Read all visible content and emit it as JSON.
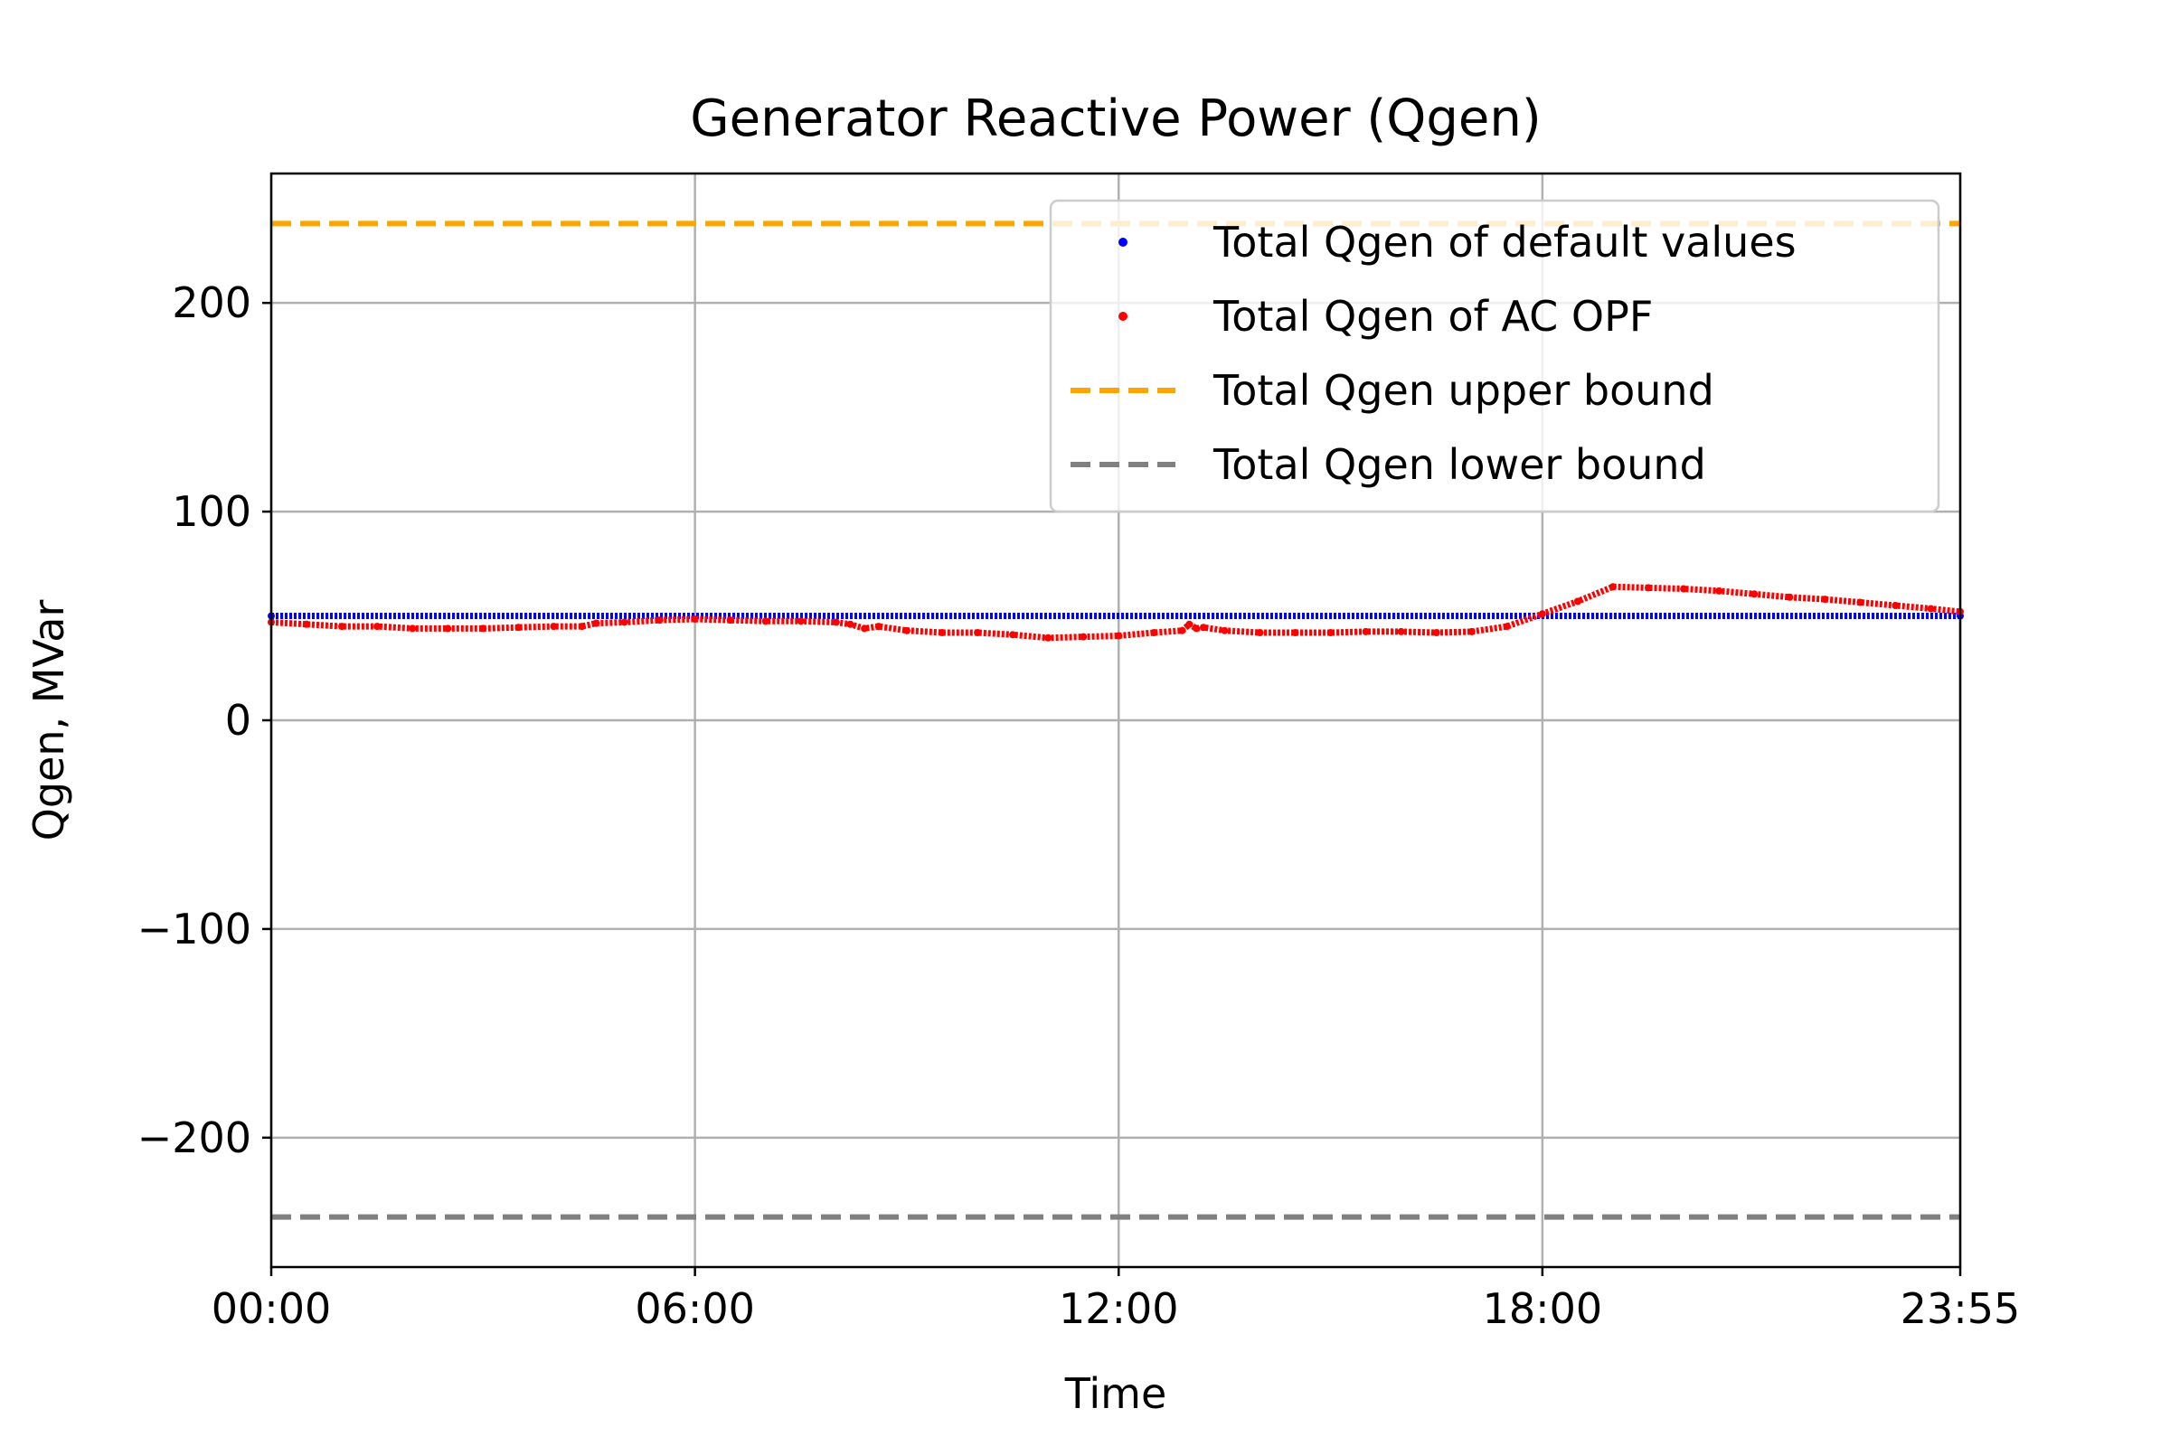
{
  "chart_data": {
    "type": "line",
    "title": "Generator Reactive Power (Qgen)",
    "xlabel": "Time",
    "ylabel": "Qgen, MVar",
    "x_unit": "hours",
    "xlim": [
      0,
      23.9167
    ],
    "ylim": [
      -262,
      262
    ],
    "x_ticks": [
      {
        "value": 0,
        "label": "00:00"
      },
      {
        "value": 6,
        "label": "06:00"
      },
      {
        "value": 12,
        "label": "12:00"
      },
      {
        "value": 18,
        "label": "18:00"
      },
      {
        "value": 23.9167,
        "label": "23:55"
      }
    ],
    "y_ticks": [
      {
        "value": 200,
        "label": "200"
      },
      {
        "value": 100,
        "label": "100"
      },
      {
        "value": 0,
        "label": "0"
      },
      {
        "value": -100,
        "label": "−100"
      },
      {
        "value": -200,
        "label": "−200"
      }
    ],
    "grid": true,
    "legend_position": "top-right",
    "series": [
      {
        "name": "Total Qgen of default values",
        "color": "#0000ff",
        "style": "dots",
        "x": [
          0,
          23.9167
        ],
        "y": [
          50,
          50
        ]
      },
      {
        "name": "Total Qgen of AC OPF",
        "color": "#ff0000",
        "style": "dots",
        "x": [
          0,
          0.5,
          1,
          1.5,
          2,
          2.5,
          3,
          3.5,
          4,
          4.4,
          4.6,
          5,
          5.5,
          6,
          6.5,
          7,
          7.5,
          8,
          8.2,
          8.4,
          8.6,
          9,
          9.5,
          10,
          10.5,
          11,
          11.5,
          12,
          12.5,
          12.9,
          13.0,
          13.1,
          13.2,
          13.5,
          14,
          14.5,
          15,
          15.5,
          16,
          16.5,
          17,
          17.5,
          18,
          18.5,
          19,
          19.5,
          20,
          20.5,
          21,
          21.5,
          22,
          22.5,
          23,
          23.5,
          23.9167
        ],
        "y": [
          47,
          46,
          45,
          45,
          44,
          44,
          44,
          44.5,
          45,
          45,
          46.5,
          47,
          48,
          48.5,
          48,
          47.5,
          47.5,
          47,
          46,
          44,
          45,
          43,
          42,
          42,
          41,
          39.5,
          40,
          40.5,
          42,
          43,
          46,
          44,
          44.5,
          43,
          42,
          42,
          42,
          42.5,
          42.5,
          42,
          42.5,
          45,
          51,
          57,
          64,
          63.5,
          63,
          62,
          60.5,
          59,
          58,
          56.5,
          55,
          53.5,
          52
        ]
      },
      {
        "name": "Total Qgen upper bound",
        "color": "#ffa500",
        "style": "dashed",
        "x": [
          0,
          23.9167
        ],
        "y": [
          238,
          238
        ]
      },
      {
        "name": "Total Qgen lower bound",
        "color": "#808080",
        "style": "dashed",
        "x": [
          0,
          23.9167
        ],
        "y": [
          -238,
          -238
        ]
      }
    ]
  }
}
